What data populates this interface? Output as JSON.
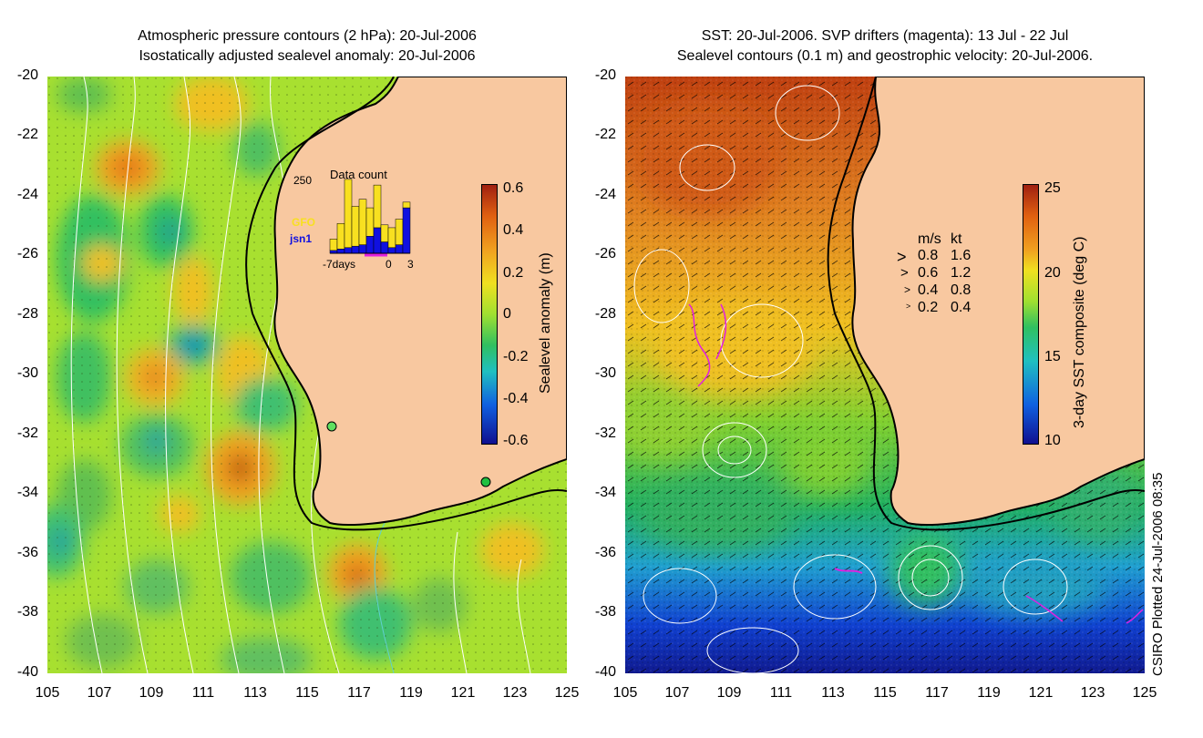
{
  "left_panel": {
    "title_line1": "Atmospheric pressure contours (2 hPa): 20-Jul-2006",
    "title_line2": "Isostatically adjusted sealevel anomaly: 20-Jul-2006",
    "colorbar": {
      "label": "Sealevel anomaly (m)",
      "ticks": [
        "0.6",
        "0.4",
        "0.2",
        "0",
        "-0.2",
        "-0.4",
        "-0.6"
      ],
      "range": [
        -0.6,
        0.6
      ]
    },
    "histogram": {
      "title": "Data count",
      "ymax_label": "250",
      "legend": [
        {
          "name": "GFO",
          "color": "#f8e020"
        },
        {
          "name": "jsn1",
          "color": "#1010e0"
        }
      ],
      "x_labels": [
        "-7days",
        "0",
        "3"
      ],
      "gfo": [
        40,
        90,
        240,
        140,
        160,
        100,
        150,
        60,
        70,
        90,
        20
      ],
      "jsn1": [
        10,
        15,
        20,
        25,
        30,
        60,
        90,
        40,
        20,
        30,
        160
      ]
    }
  },
  "right_panel": {
    "title_line1": "SST: 20-Jul-2006. SVP drifters (magenta): 13 Jul - 22 Jul",
    "title_line2": "Sealevel contours (0.1 m) and geostrophic velocity: 20-Jul-2006.",
    "colorbar": {
      "label": "3-day SST composite (deg C)",
      "ticks": [
        "25",
        "20",
        "15",
        "10"
      ],
      "range": [
        10,
        25
      ]
    },
    "velocity_legend": {
      "header_ms": "m/s",
      "header_kt": "kt",
      "rows": [
        {
          "ms": "0.8",
          "kt": "1.6"
        },
        {
          "ms": "0.6",
          "kt": "1.2"
        },
        {
          "ms": "0.4",
          "kt": "0.8"
        },
        {
          "ms": "0.2",
          "kt": "0.4"
        }
      ]
    }
  },
  "axes": {
    "y_ticks": [
      "-20",
      "-22",
      "-24",
      "-26",
      "-28",
      "-30",
      "-32",
      "-34",
      "-36",
      "-38",
      "-40"
    ],
    "x_ticks": [
      "105",
      "107",
      "109",
      "111",
      "113",
      "115",
      "117",
      "119",
      "121",
      "123",
      "125"
    ],
    "lat_range": [
      -40,
      -20
    ],
    "lon_range": [
      105,
      125
    ]
  },
  "credit": "CSIRO Plotted 24-Jul-2006 08:35",
  "colors": {
    "land": "#f8c8a0",
    "ocean_base": "#90e030",
    "coast": "#000000"
  }
}
